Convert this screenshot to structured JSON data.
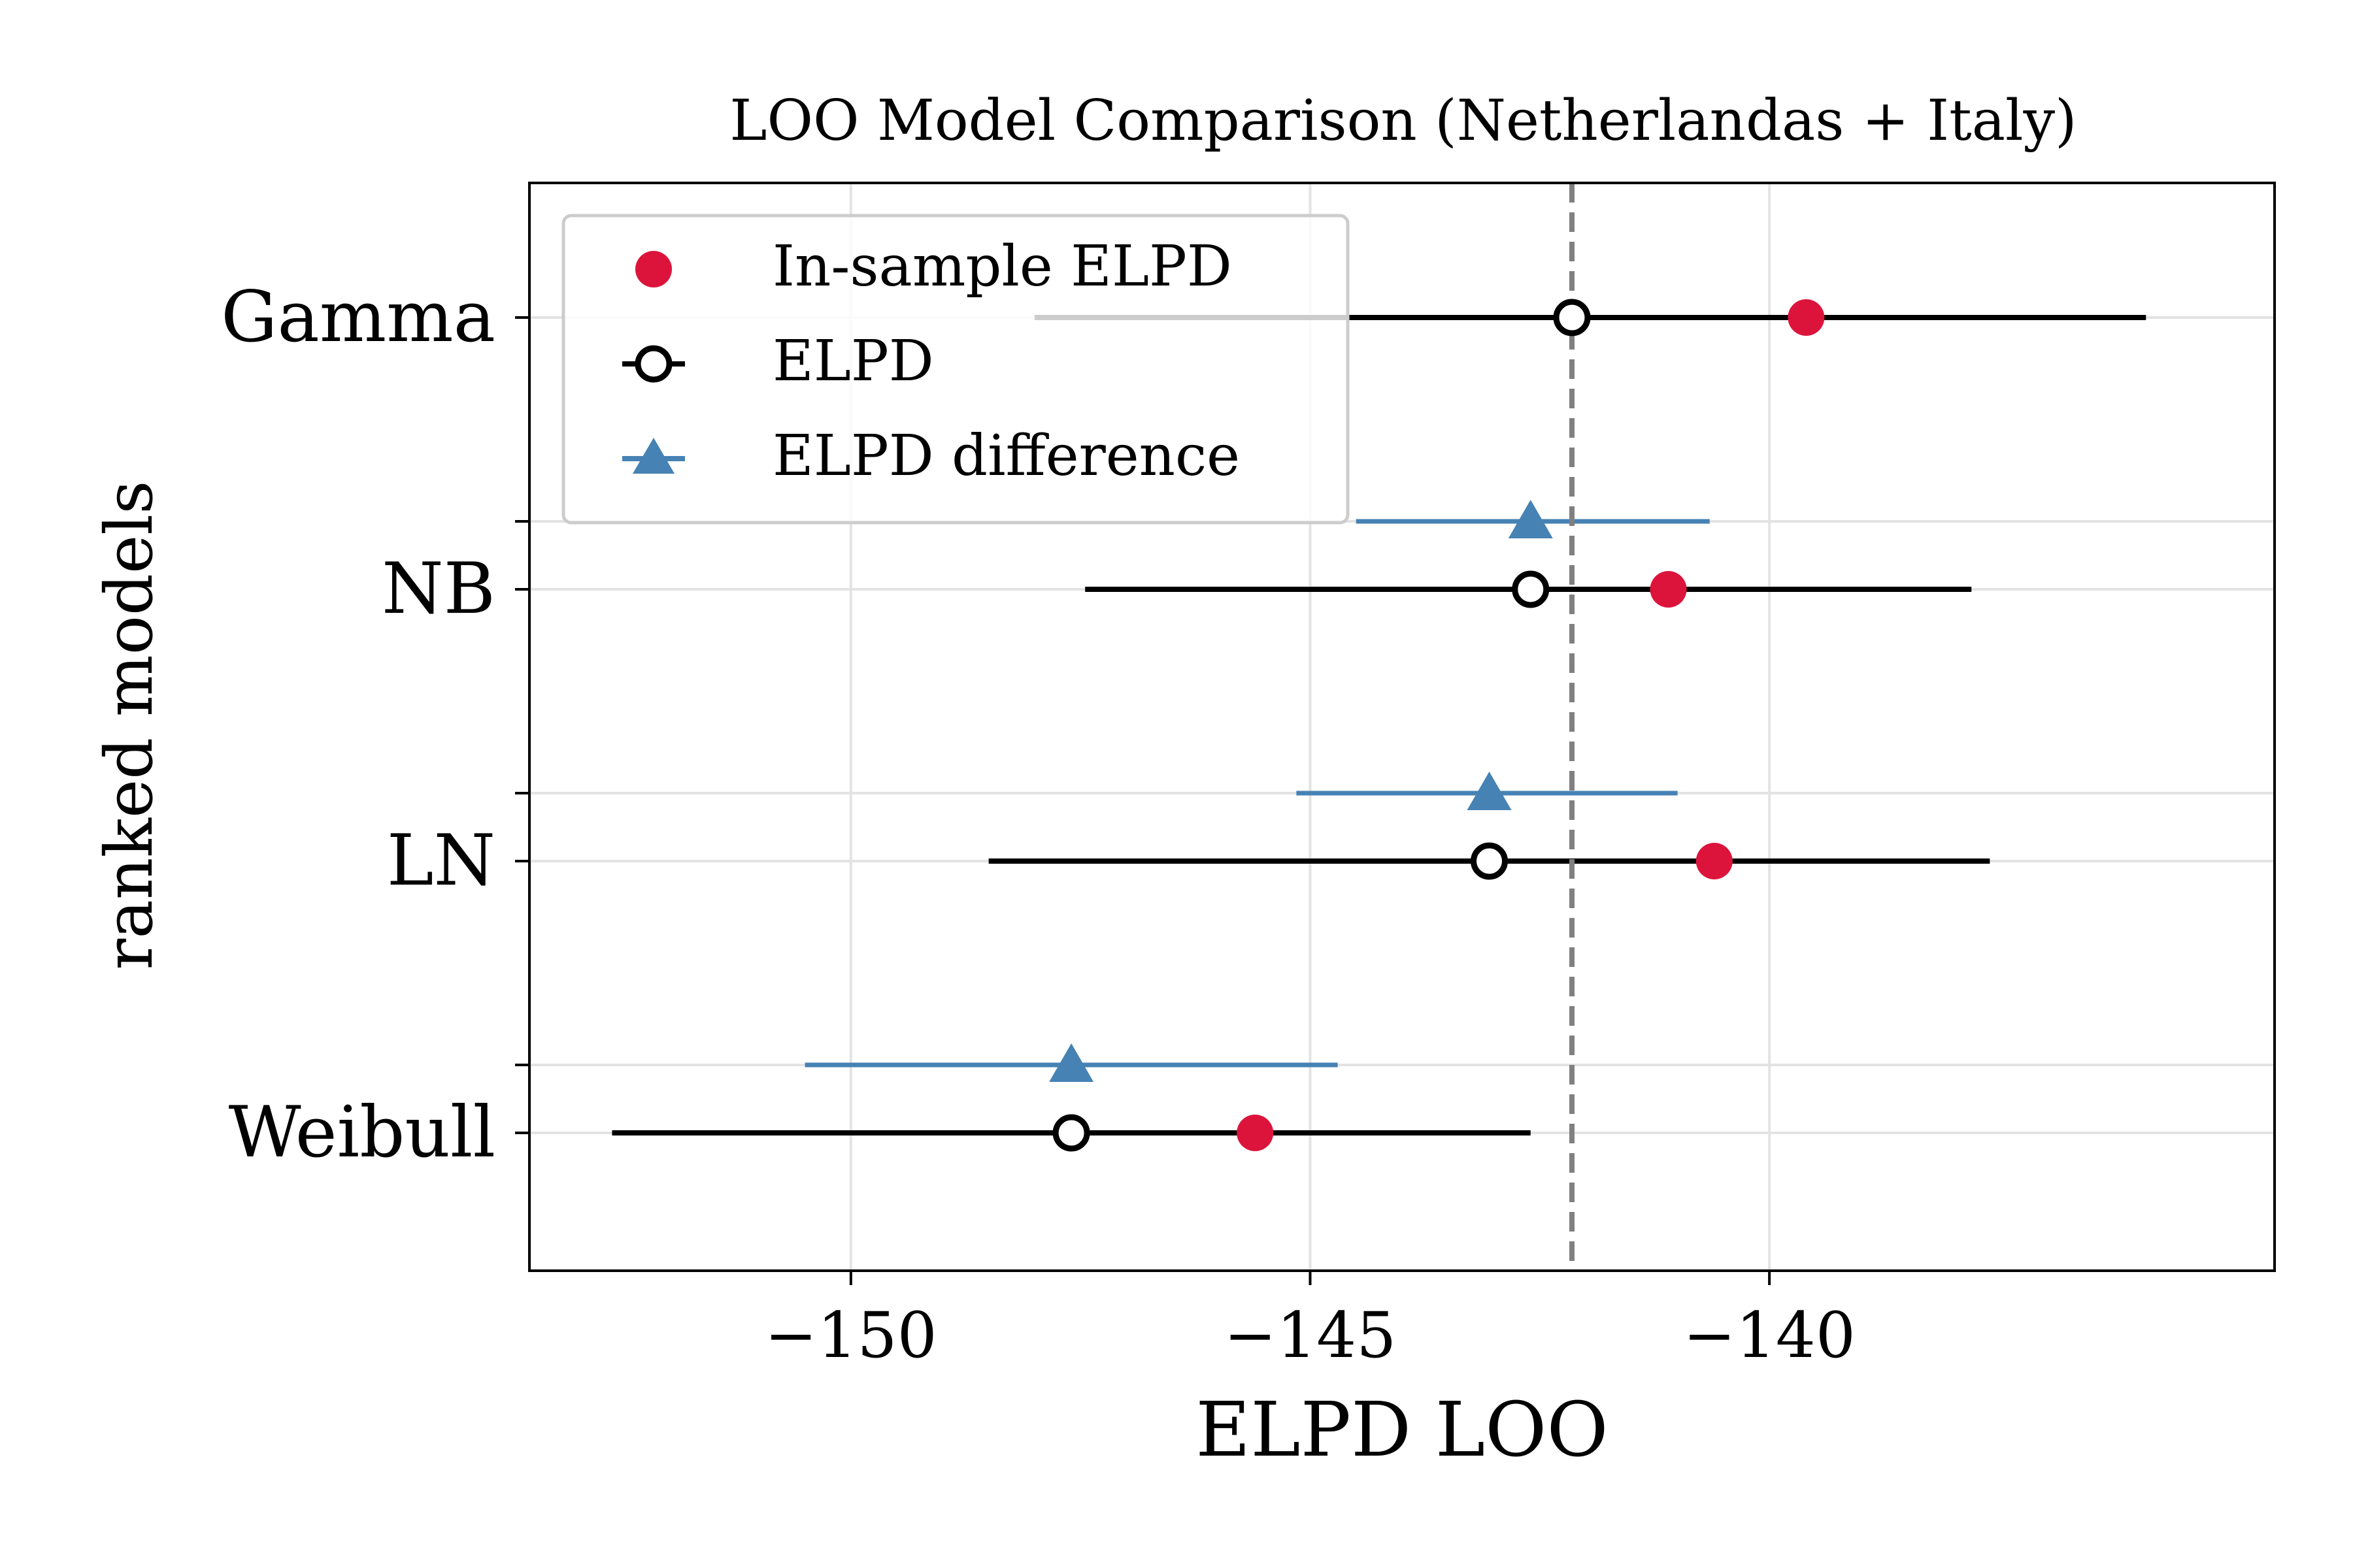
{
  "chart_data": {
    "type": "scatter",
    "title": "LOO Model Comparison (Netherlandas + Italy)",
    "xlabel": "ELPD LOO",
    "ylabel": "ranked models",
    "xlim": [
      -153.5,
      -134.5
    ],
    "xticks": [
      -150,
      -145,
      -140
    ],
    "xtick_labels": [
      "−150",
      "−145",
      "−140"
    ],
    "categories": [
      "Gamma",
      "NB",
      "LN",
      "Weibull"
    ],
    "reference_line": -142.15,
    "grid": true,
    "legend_position": "top-left",
    "series": [
      {
        "name": "In-sample ELPD",
        "marker": "filled-circle",
        "color": "#dc143c",
        "values": [
          -139.6,
          -141.1,
          -140.6,
          -145.6
        ]
      },
      {
        "name": "ELPD",
        "marker": "open-circle",
        "color": "#000000",
        "values": [
          -142.15,
          -142.6,
          -143.05,
          -147.6
        ],
        "error_low": [
          -148.0,
          -147.45,
          -148.5,
          -152.6
        ],
        "error_high": [
          -135.9,
          -137.8,
          -137.6,
          -142.6
        ]
      },
      {
        "name": "ELPD difference",
        "marker": "triangle",
        "color": "#4682b4",
        "values": [
          null,
          -142.6,
          -143.05,
          -147.6
        ],
        "error_low": [
          null,
          -144.5,
          -145.15,
          -150.5
        ],
        "error_high": [
          null,
          -140.65,
          -141.0,
          -144.7
        ]
      }
    ]
  }
}
